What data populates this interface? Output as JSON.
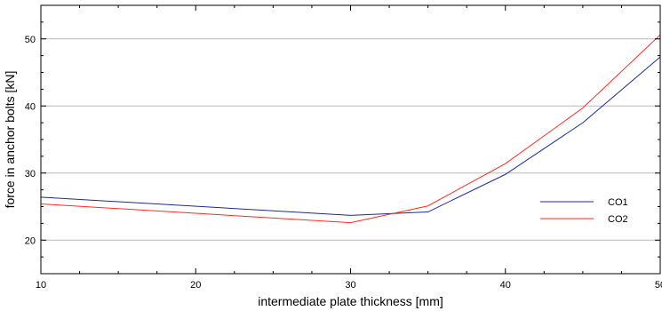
{
  "chart_data": {
    "type": "line",
    "xlabel": "intermediate plate thickness [mm]",
    "ylabel": "force in anchor bolts [kN]",
    "xlim": [
      10,
      50
    ],
    "ylim": [
      15,
      55
    ],
    "x_ticks": [
      10,
      20,
      30,
      40,
      50
    ],
    "y_ticks": [
      20,
      30,
      40,
      50
    ],
    "x_tick_labels": [
      "10",
      "20",
      "30",
      "40",
      "50"
    ],
    "y_tick_labels": [
      "20",
      "30",
      "40",
      "50"
    ],
    "grid": "horizontal",
    "legend_position": "lower-right",
    "series": [
      {
        "name": "CO1",
        "color": "#1a2a9c",
        "x": [
          10,
          30,
          35,
          40,
          45,
          50
        ],
        "y": [
          26.4,
          23.7,
          24.2,
          29.8,
          37.5,
          47.3
        ]
      },
      {
        "name": "CO2",
        "color": "#ff2a1f",
        "x": [
          10,
          30,
          35,
          40,
          45,
          50
        ],
        "y": [
          25.4,
          22.6,
          25.1,
          31.4,
          39.7,
          50.6
        ]
      }
    ]
  }
}
